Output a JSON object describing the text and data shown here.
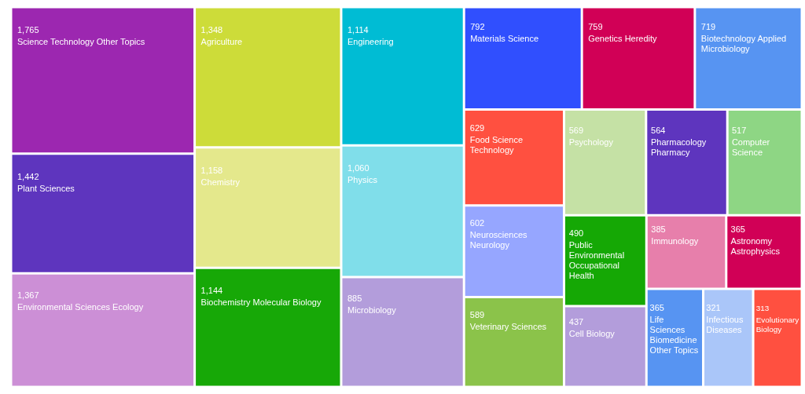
{
  "chart_data": {
    "type": "other",
    "categories": [
      "Science Technology Other Topics",
      "Plant Sciences",
      "Environmental Sciences Ecology",
      "Agriculture",
      "Chemistry",
      "Biochemistry Molecular Biology",
      "Engineering",
      "Physics",
      "Microbiology",
      "Materials Science",
      "Genetics Heredity",
      "Biotechnology Applied Microbiology",
      "Food Science Technology",
      "Neurosciences Neurology",
      "Veterinary Sciences",
      "Psychology",
      "Pharmacology Pharmacy",
      "Computer Science",
      "Public Environmental Occupational Health",
      "Cell Biology",
      "Immunology",
      "Astronomy Astrophysics",
      "Life Sciences Biomedicine Other Topics",
      "Infectious Diseases",
      "Evolutionary Biology"
    ],
    "values": [
      1765,
      1442,
      1367,
      1348,
      1158,
      1144,
      1114,
      1060,
      885,
      792,
      759,
      719,
      629,
      602,
      589,
      569,
      564,
      517,
      490,
      437,
      385,
      365,
      365,
      321,
      313
    ],
    "value_labels": [
      "1,765",
      "1,442",
      "1,367",
      "1,348",
      "1,158",
      "1,144",
      "1,114",
      "1,060",
      "885",
      "792",
      "759",
      "719",
      "629",
      "602",
      "589",
      "569",
      "564",
      "517",
      "490",
      "437",
      "385",
      "365",
      "365",
      "321",
      "313"
    ],
    "colors": [
      "#9c27b0",
      "#5e35be",
      "#cc8fd6",
      "#cddc39",
      "#e4e88c",
      "#17a807",
      "#00bcd4",
      "#80deea",
      "#b39ddb",
      "#304ffe",
      "#d10056",
      "#5794f2",
      "#ff5040",
      "#96a6ff",
      "#8bc34a",
      "#c5e1a5",
      "#5e35be",
      "#8ed684",
      "#15a805",
      "#b39ddb",
      "#e77fab",
      "#d10056",
      "#5794f2",
      "#aac6f9",
      "#ff5040"
    ]
  }
}
